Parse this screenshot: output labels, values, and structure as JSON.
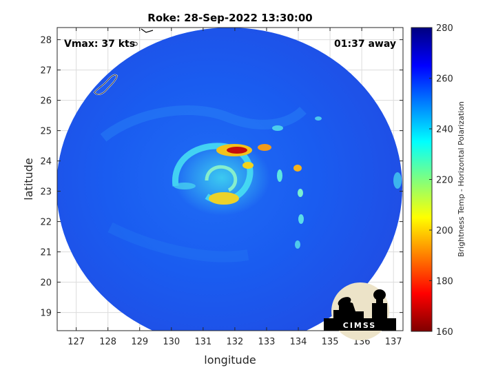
{
  "figure": {
    "title": "Roke: 28-Sep-2022 13:30:00",
    "xlabel": "longitude",
    "ylabel": "latitude",
    "vmax_label": "Vmax: 37 kts",
    "away_label": "01:37 away",
    "logo_text": "CIMSS"
  },
  "axes": {
    "x_ticks": [
      "127",
      "128",
      "129",
      "130",
      "131",
      "132",
      "133",
      "134",
      "135",
      "136",
      "137"
    ],
    "y_ticks": [
      "28",
      "27",
      "26",
      "25",
      "24",
      "23",
      "22",
      "21",
      "20",
      "19"
    ],
    "x_range": [
      126.4,
      137.3
    ],
    "y_range": [
      18.4,
      28.4
    ],
    "grid": true
  },
  "colorbar": {
    "label": "Brightness Temp - Horizontal Polarization",
    "ticks": [
      "280",
      "260",
      "240",
      "220",
      "200",
      "180",
      "160"
    ],
    "range": [
      160,
      280
    ],
    "colormap": "jet"
  },
  "chart_data": {
    "type": "heatmap",
    "title": "Roke: 28-Sep-2022 13:30:00",
    "xlabel": "longitude",
    "ylabel": "latitude",
    "xlim": [
      126.4,
      137.3
    ],
    "ylim": [
      18.4,
      28.4
    ],
    "colorbar_label": "Brightness Temp - Horizontal Polarization",
    "colorbar_range": [
      160,
      280
    ],
    "storm_center": {
      "lon": 131.9,
      "lat": 23.5
    },
    "swath_background_K": 260,
    "warm_rainbands_K": [
      {
        "lon": 132.2,
        "lat": 24.3,
        "min_K": 172
      },
      {
        "lon": 132.9,
        "lat": 24.4,
        "min_K": 190
      },
      {
        "lon": 132.8,
        "lat": 22.7,
        "min_K": 200
      },
      {
        "lon": 134.0,
        "lat": 23.6,
        "min_K": 195
      }
    ],
    "annotations": [
      "Vmax: 37 kts",
      "01:37 away"
    ]
  }
}
